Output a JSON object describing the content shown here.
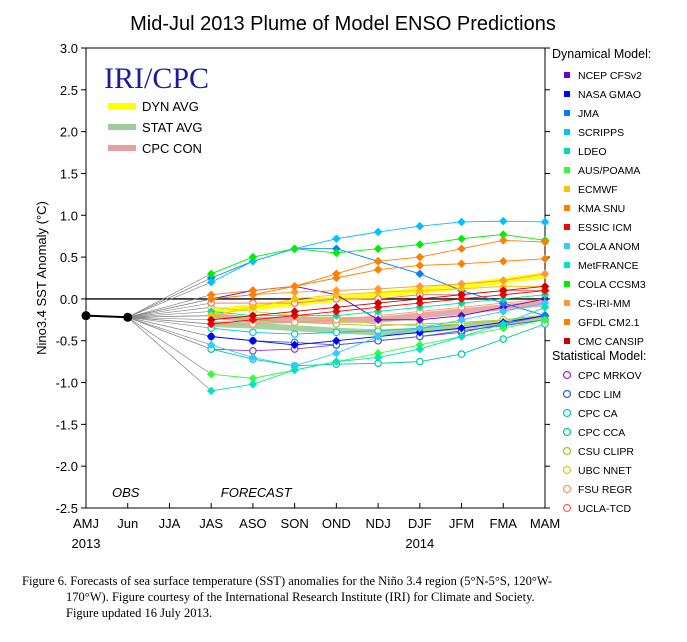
{
  "caption": {
    "line1": "Figure 6. Forecasts of sea surface temperature (SST) anomalies for the Niño 3.4 region (5°N-5°S, 120°W-",
    "line2": "170°W).  Figure courtesy of the International Research Institute (IRI) for Climate and Society.",
    "line3": "Figure updated 16 July 2013."
  },
  "chart_data": {
    "type": "line",
    "title": "Mid-Jul 2013 Plume of Model ENSO Predictions",
    "ylabel": "Nino3.4 SST Anomaly (°C)",
    "ylim": [
      -2.5,
      3.0
    ],
    "yticks": [
      "3.0",
      "2.5",
      "2.0",
      "1.5",
      "1.0",
      "0.5",
      "0.0",
      "-0.5",
      "-1.0",
      "-1.5",
      "-2.0",
      "-2.5"
    ],
    "categories": [
      "AMJ",
      "Jun",
      "JJA",
      "JAS",
      "ASO",
      "SON",
      "OND",
      "NDJ",
      "DJF",
      "JFM",
      "FMA",
      "MAM"
    ],
    "year_labels": [
      {
        "cat": "AMJ",
        "text": "2013"
      },
      {
        "cat": "DJF",
        "text": "2014"
      }
    ],
    "logo": "IRI/CPC",
    "obs_label": "OBS",
    "forecast_label": "FORECAST",
    "observed": {
      "x": [
        "AMJ",
        "Jun"
      ],
      "values": [
        -0.2,
        -0.22
      ]
    },
    "averages": [
      {
        "name": "DYN AVG",
        "color": "#ffff00",
        "values": [
          -0.15,
          -0.1,
          -0.05,
          0.0,
          0.05,
          0.1,
          0.15,
          0.22,
          0.28
        ]
      },
      {
        "name": "STAT AVG",
        "color": "#9acd9a",
        "values": [
          -0.3,
          -0.32,
          -0.35,
          -0.38,
          -0.4,
          -0.38,
          -0.33,
          -0.28,
          -0.22
        ]
      },
      {
        "name": "CPC CON",
        "color": "#e4a0a0",
        "values": [
          -0.2,
          -0.25,
          -0.25,
          -0.25,
          -0.25,
          -0.2,
          -0.15,
          -0.1,
          -0.05
        ]
      }
    ],
    "dynamical_header": "Dynamical Model:",
    "statistical_header": "Statistical Model:",
    "dynamical": [
      {
        "name": "NCEP CFSv2",
        "color": "#6600cc",
        "values": [
          0.0,
          0.1,
          0.15,
          0.05,
          -0.25,
          -0.25,
          -0.2,
          -0.1,
          0.0
        ]
      },
      {
        "name": "NASA GMAO",
        "color": "#0000ff",
        "values": [
          -0.45,
          -0.5,
          -0.55,
          -0.5,
          -0.45,
          -0.4,
          -0.35,
          -0.28,
          -0.2
        ]
      },
      {
        "name": "JMA",
        "color": "#0080ff",
        "values": [
          0.25,
          0.45,
          0.6,
          0.6,
          0.45,
          0.3,
          0.1,
          -0.05,
          -0.2
        ]
      },
      {
        "name": "SCRIPPS",
        "color": "#00c0ff",
        "values": [
          0.2,
          0.45,
          0.6,
          0.72,
          0.8,
          0.87,
          0.92,
          0.93,
          0.92
        ]
      },
      {
        "name": "LDEO",
        "color": "#00e0a0",
        "values": [
          -0.15,
          -0.2,
          -0.2,
          -0.2,
          -0.15,
          -0.1,
          -0.05,
          0.0,
          0.05
        ]
      },
      {
        "name": "AUS/POAMA",
        "color": "#33ff33",
        "values": [
          -0.9,
          -0.95,
          -0.85,
          -0.75,
          -0.65,
          -0.55,
          -0.45,
          -0.35,
          -0.25
        ]
      },
      {
        "name": "ECMWF",
        "color": "#ffc000",
        "values": [
          -0.2,
          -0.1,
          0.0,
          0.05,
          0.08,
          0.1,
          0.12,
          0.15,
          0.15
        ]
      },
      {
        "name": "KMA SNU",
        "color": "#ff8000",
        "values": [
          0.05,
          0.1,
          0.15,
          0.25,
          0.35,
          0.4,
          0.42,
          0.45,
          0.48
        ]
      },
      {
        "name": "ESSIC ICM",
        "color": "#ff0000",
        "values": [
          -0.3,
          -0.25,
          -0.2,
          -0.15,
          -0.1,
          -0.05,
          0.0,
          0.05,
          0.1
        ]
      },
      {
        "name": "COLA ANOM",
        "color": "#33ccff",
        "values": [
          -0.55,
          -0.7,
          -0.8,
          -0.65,
          -0.45,
          -0.35,
          -0.25,
          -0.15,
          -0.05
        ]
      },
      {
        "name": "MetFRANCE",
        "color": "#00e5c0",
        "values": [
          -1.1,
          -1.02,
          -0.85,
          -0.75,
          -0.7,
          -0.6,
          -0.45,
          -0.3,
          -0.1
        ]
      },
      {
        "name": "COLA CCSM3",
        "color": "#00ee00",
        "values": [
          0.3,
          0.5,
          0.6,
          0.55,
          0.6,
          0.65,
          0.72,
          0.77,
          0.7
        ]
      },
      {
        "name": "CS-IRI-MM",
        "color": "#ff9933",
        "values": [
          0.0,
          0.05,
          0.08,
          0.1,
          0.12,
          0.15,
          0.18,
          0.22,
          0.3
        ]
      },
      {
        "name": "GFDL CM2.1",
        "color": "#ff7f00",
        "values": [
          0.0,
          0.05,
          0.15,
          0.3,
          0.45,
          0.5,
          0.6,
          0.7,
          0.68
        ]
      },
      {
        "name": "CMC CANSIP",
        "color": "#cc0000",
        "values": [
          -0.25,
          -0.2,
          -0.15,
          -0.1,
          -0.05,
          0.0,
          0.05,
          0.1,
          0.15
        ]
      }
    ],
    "statistical": [
      {
        "name": "CPC MRKOV",
        "color": "#9933cc",
        "values": [
          -0.6,
          -0.62,
          -0.6,
          -0.55,
          -0.5,
          -0.45,
          -0.4,
          -0.3,
          -0.2
        ]
      },
      {
        "name": "CDC LIM",
        "color": "#3366cc",
        "values": [
          -0.45,
          -0.5,
          -0.52,
          -0.55,
          -0.5,
          -0.45,
          -0.38,
          -0.32,
          -0.25
        ]
      },
      {
        "name": "CPC CA",
        "color": "#00cccc",
        "values": [
          -0.35,
          -0.4,
          -0.42,
          -0.4,
          -0.38,
          -0.35,
          -0.3,
          -0.25,
          -0.2
        ]
      },
      {
        "name": "CPC CCA",
        "color": "#00cc99",
        "values": [
          -0.6,
          -0.72,
          -0.8,
          -0.78,
          -0.77,
          -0.75,
          -0.66,
          -0.48,
          -0.3
        ]
      },
      {
        "name": "CSU CLIPR",
        "color": "#99cc33",
        "values": [
          -0.2,
          -0.25,
          -0.28,
          -0.3,
          -0.32,
          -0.3,
          -0.28,
          -0.25,
          -0.2
        ]
      },
      {
        "name": "UBC NNET",
        "color": "#cccc33",
        "values": [
          -0.1,
          -0.15,
          -0.2,
          -0.25,
          -0.3,
          -0.32,
          -0.3,
          -0.25,
          -0.2
        ]
      },
      {
        "name": "FSU REGR",
        "color": "#ff9966",
        "values": [
          -0.3,
          -0.3,
          -0.28,
          -0.25,
          -0.2,
          -0.15,
          -0.1,
          -0.05,
          0.0
        ]
      },
      {
        "name": "UCLA-TCD",
        "color": "#ff6666",
        "values": [
          -0.05,
          -0.05,
          -0.05,
          0.0,
          0.0,
          0.05,
          0.05,
          0.1,
          0.1
        ]
      }
    ]
  }
}
